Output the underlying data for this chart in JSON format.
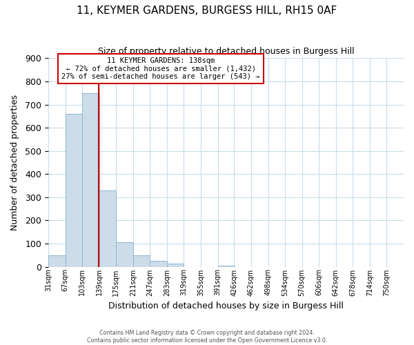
{
  "title": "11, KEYMER GARDENS, BURGESS HILL, RH15 0AF",
  "subtitle": "Size of property relative to detached houses in Burgess Hill",
  "xlabel": "Distribution of detached houses by size in Burgess Hill",
  "ylabel": "Number of detached properties",
  "footer_lines": [
    "Contains HM Land Registry data © Crown copyright and database right 2024.",
    "Contains public sector information licensed under the Open Government Licence v3.0."
  ],
  "bin_labels": [
    "31sqm",
    "67sqm",
    "103sqm",
    "139sqm",
    "175sqm",
    "211sqm",
    "247sqm",
    "283sqm",
    "319sqm",
    "355sqm",
    "391sqm",
    "426sqm",
    "462sqm",
    "498sqm",
    "534sqm",
    "570sqm",
    "606sqm",
    "642sqm",
    "678sqm",
    "714sqm",
    "750sqm"
  ],
  "bin_left_edges": [
    31,
    67,
    103,
    139,
    175,
    211,
    247,
    283,
    319,
    355,
    391,
    426,
    462,
    498,
    534,
    570,
    606,
    642,
    678,
    714,
    750
  ],
  "bar_heights": [
    50,
    660,
    750,
    330,
    105,
    50,
    25,
    13,
    0,
    0,
    5,
    0,
    0,
    0,
    0,
    0,
    0,
    0,
    0,
    0,
    0
  ],
  "bar_color": "#ccdce9",
  "bar_edge_color": "#90b8d0",
  "marker_value": 138,
  "marker_color": "#cc0000",
  "annotation_title": "11 KEYMER GARDENS: 138sqm",
  "annotation_line1": "← 72% of detached houses are smaller (1,432)",
  "annotation_line2": "27% of semi-detached houses are larger (543) →",
  "annotation_box_edge": "#cc0000",
  "ylim": [
    0,
    900
  ],
  "yticks": [
    0,
    100,
    200,
    300,
    400,
    500,
    600,
    700,
    800,
    900
  ],
  "background_color": "#ffffff",
  "grid_color": "#c8dce8"
}
